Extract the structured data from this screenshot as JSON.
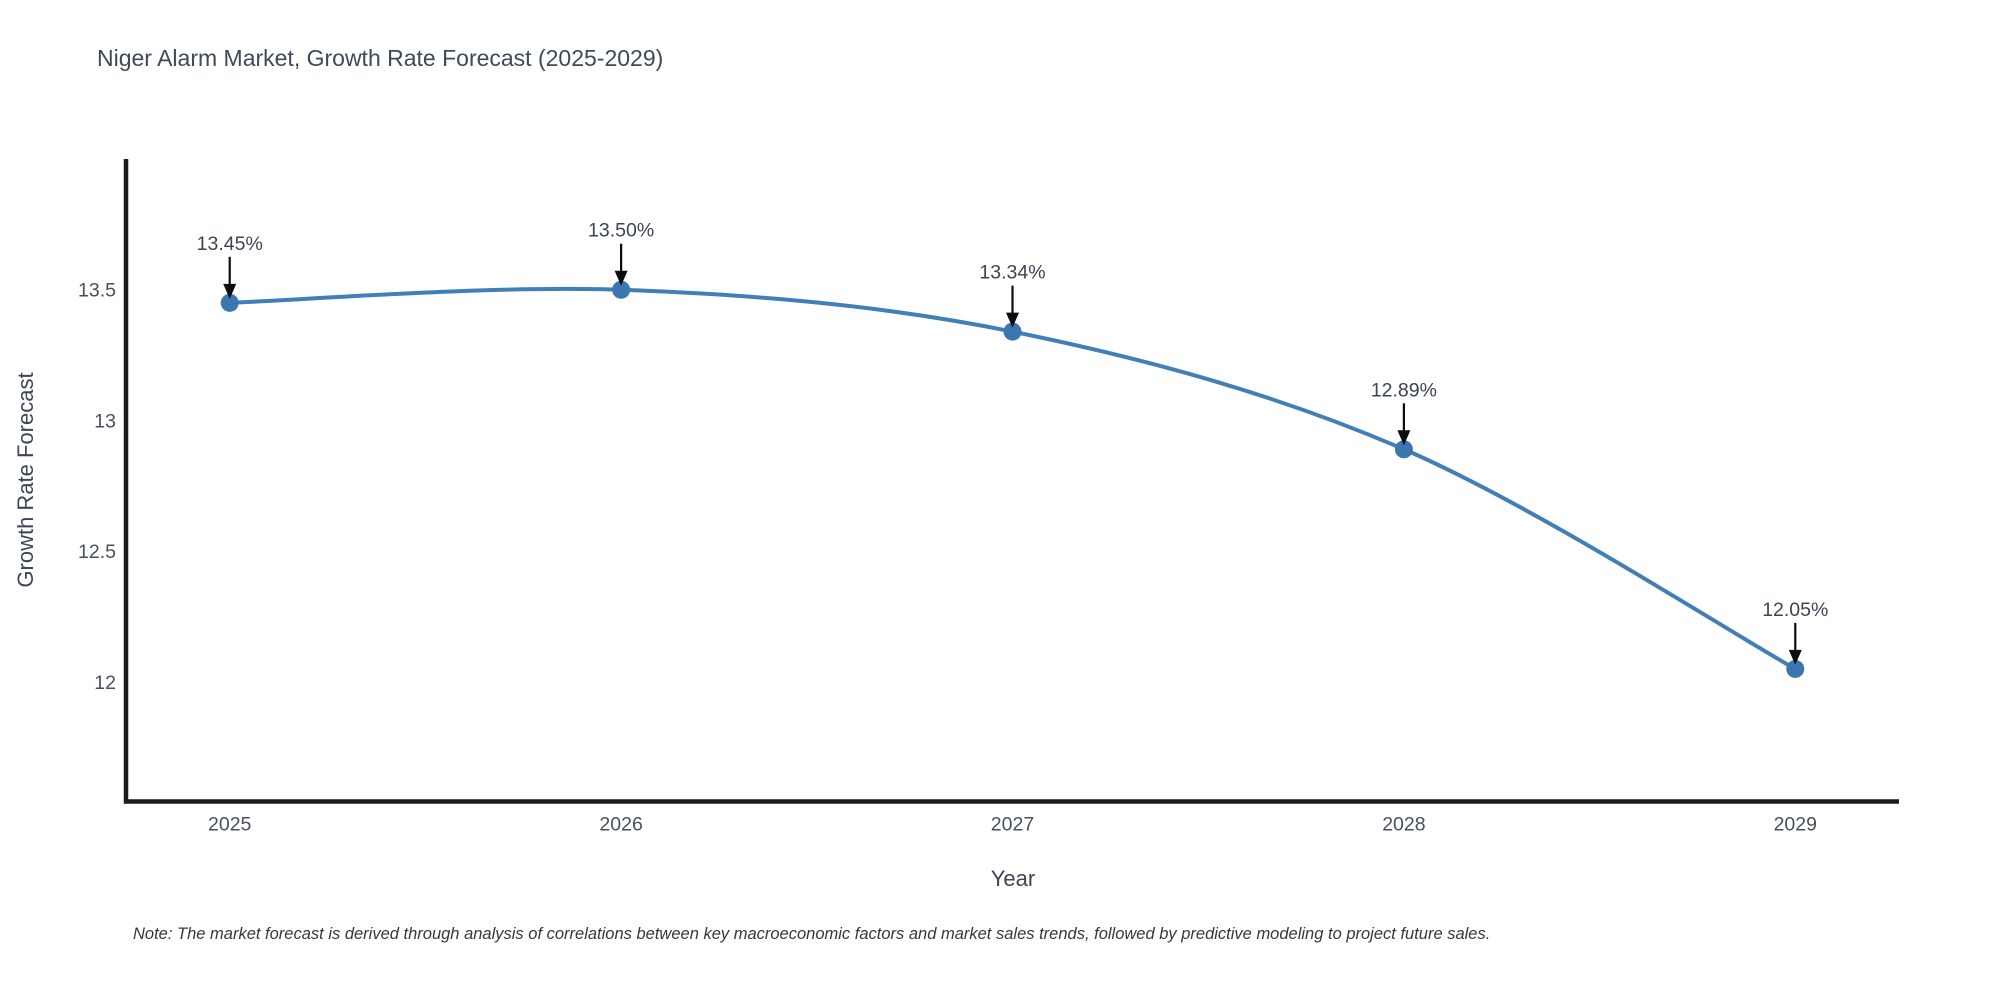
{
  "note": "Note: The market forecast is derived through analysis of correlations between key macroeconomic factors and market sales trends, followed by predictive modeling to project future sales.",
  "chart_data": {
    "type": "line",
    "title": "Niger Alarm Market, Growth Rate Forecast (2025-2029)",
    "xlabel": "Year",
    "ylabel": "Growth Rate Forecast",
    "x": [
      2025,
      2026,
      2027,
      2028,
      2029
    ],
    "values": [
      13.45,
      13.5,
      13.34,
      12.89,
      12.05
    ],
    "point_labels": [
      "13.45%",
      "13.50%",
      "13.34%",
      "12.89%",
      "12.05%"
    ],
    "x_tick_labels": [
      "2025",
      "2026",
      "2027",
      "2028",
      "2029"
    ],
    "y_ticks": [
      12,
      12.5,
      13,
      13.5
    ],
    "y_tick_labels": [
      "12",
      "12.5",
      "13",
      "13.5"
    ],
    "xlim": [
      2024.735,
      2029.265
    ],
    "ylim": [
      11.543,
      14.0
    ],
    "grid": false,
    "legend": false,
    "line_shape": "spline",
    "units": "percent",
    "colors": {
      "line": "#427fb6",
      "marker": "#3a76b0",
      "axis": "#1b1b1b",
      "title_text": "#3c4a5a",
      "tick_text": "#47505c",
      "axis_title_text": "#3d4653",
      "annotation_text": "#3c4552",
      "annotation_arrow": "#0d0d0d",
      "note_text": "#383838",
      "background": "#ffffff"
    }
  }
}
